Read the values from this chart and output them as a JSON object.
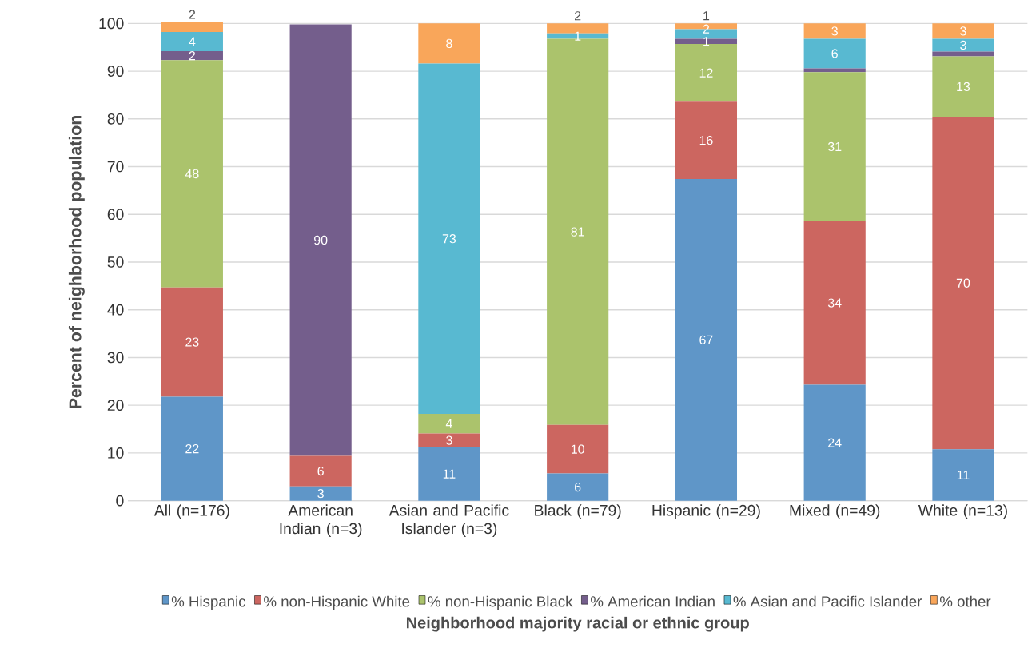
{
  "chart_data": {
    "type": "bar",
    "stacked": true,
    "xlabel": "Neighborhood majority racial or ethnic group",
    "ylabel": "Percent of neighborhood population",
    "categories": [
      "All (n=176)",
      "American Indian (n=3)",
      "Asian and Pacific Islander (n=3)",
      "Black (n=79)",
      "Hispanic (n=29)",
      "Mixed (n=49)",
      "White (n=13)"
    ],
    "series": [
      {
        "name": "% Hispanic",
        "color": "#5f96c8",
        "values": [
          21.8,
          3.0,
          11.2,
          5.7,
          67.4,
          24.3,
          10.8
        ],
        "value_labels": [
          "22",
          "3",
          "11",
          "6",
          "67",
          "24",
          "11"
        ]
      },
      {
        "name": "% non-Hispanic White",
        "color": "#cc6660",
        "values": [
          22.9,
          6.4,
          2.9,
          10.2,
          16.2,
          34.3,
          69.6
        ],
        "value_labels": [
          "23",
          "6",
          "3",
          "10",
          "16",
          "34",
          "70"
        ]
      },
      {
        "name": "% non-Hispanic Black",
        "color": "#abc36c",
        "values": [
          47.6,
          0,
          4.1,
          80.9,
          12.1,
          31.2,
          12.7
        ],
        "value_labels": [
          "48",
          null,
          "4",
          "81",
          "12",
          "31",
          "13"
        ]
      },
      {
        "name": "% American Indian",
        "color": "#745e8c",
        "values": [
          1.9,
          90.4,
          0,
          0,
          1.1,
          0.8,
          1.0
        ],
        "value_labels": [
          "2",
          "90",
          null,
          null,
          "1",
          null,
          null
        ]
      },
      {
        "name": "% Asian and Pacific Islander",
        "color": "#58b9d1",
        "values": [
          4.0,
          0,
          73.4,
          1.1,
          2.0,
          6.2,
          2.7
        ],
        "value_labels": [
          "4",
          null,
          "73",
          "1",
          "2",
          "6",
          "3"
        ]
      },
      {
        "name": "% other",
        "color": "#f9a65a",
        "values": [
          2.1,
          0,
          8.4,
          2.1,
          1.2,
          3.2,
          3.2
        ],
        "value_labels": [
          "2",
          null,
          "8",
          "2",
          "1",
          "3",
          "3"
        ]
      }
    ],
    "ylim": [
      0,
      100
    ],
    "yticks": [
      0,
      10,
      20,
      30,
      40,
      50,
      60,
      70,
      80,
      90,
      100
    ],
    "grid": "y",
    "legend": "bottom"
  }
}
